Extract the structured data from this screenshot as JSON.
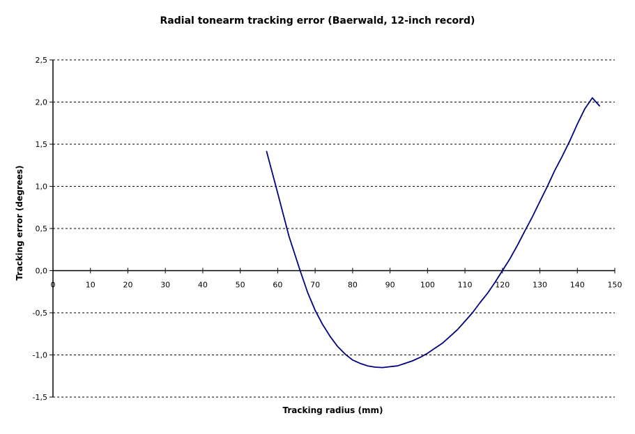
{
  "chart_data": {
    "type": "line",
    "title": "Radial tonearm tracking error (Baerwald, 12-inch record)",
    "xlabel": "Tracking radius (mm)",
    "ylabel": "Tracking error (degrees)",
    "xlim": [
      0,
      150
    ],
    "ylim": [
      -1.5,
      2.5
    ],
    "x_ticks": [
      0,
      10,
      20,
      30,
      40,
      50,
      60,
      70,
      80,
      90,
      100,
      110,
      120,
      130,
      140,
      150
    ],
    "x_tick_labels": [
      "0",
      "10",
      "20",
      "30",
      "40",
      "50",
      "60",
      "70",
      "80",
      "90",
      "100",
      "110",
      "120",
      "130",
      "140",
      "150"
    ],
    "y_ticks": [
      2.5,
      2.0,
      1.5,
      1.0,
      0.5,
      0.0,
      -0.5,
      -1.0,
      -1.5
    ],
    "y_tick_labels": [
      "2,5",
      "2,0",
      "1,5",
      "1,0",
      "0,5",
      "0,0",
      "-0,5",
      "-1,0",
      "-1,5"
    ],
    "grid": "horizontal dashed",
    "legend": "none",
    "series": [
      {
        "color": "#000080",
        "x": [
          57,
          60,
          63,
          66,
          68,
          70,
          72,
          74,
          76,
          78,
          80,
          82,
          84,
          86,
          88,
          90,
          92,
          94,
          96,
          98,
          100,
          102,
          104,
          106,
          108,
          110,
          112,
          114,
          116,
          118,
          120,
          122,
          124,
          126,
          128,
          130,
          132,
          134,
          136,
          138,
          140,
          142,
          144,
          146
        ],
        "y": [
          1.42,
          0.92,
          0.41,
          0.0,
          -0.26,
          -0.47,
          -0.64,
          -0.78,
          -0.9,
          -0.99,
          -1.06,
          -1.1,
          -1.13,
          -1.145,
          -1.15,
          -1.14,
          -1.13,
          -1.1,
          -1.07,
          -1.03,
          -0.98,
          -0.92,
          -0.86,
          -0.78,
          -0.7,
          -0.6,
          -0.5,
          -0.38,
          -0.27,
          -0.14,
          0.0,
          0.14,
          0.3,
          0.47,
          0.64,
          0.82,
          1.0,
          1.19,
          1.36,
          1.54,
          1.74,
          1.92,
          2.05,
          1.95
        ]
      }
    ]
  }
}
